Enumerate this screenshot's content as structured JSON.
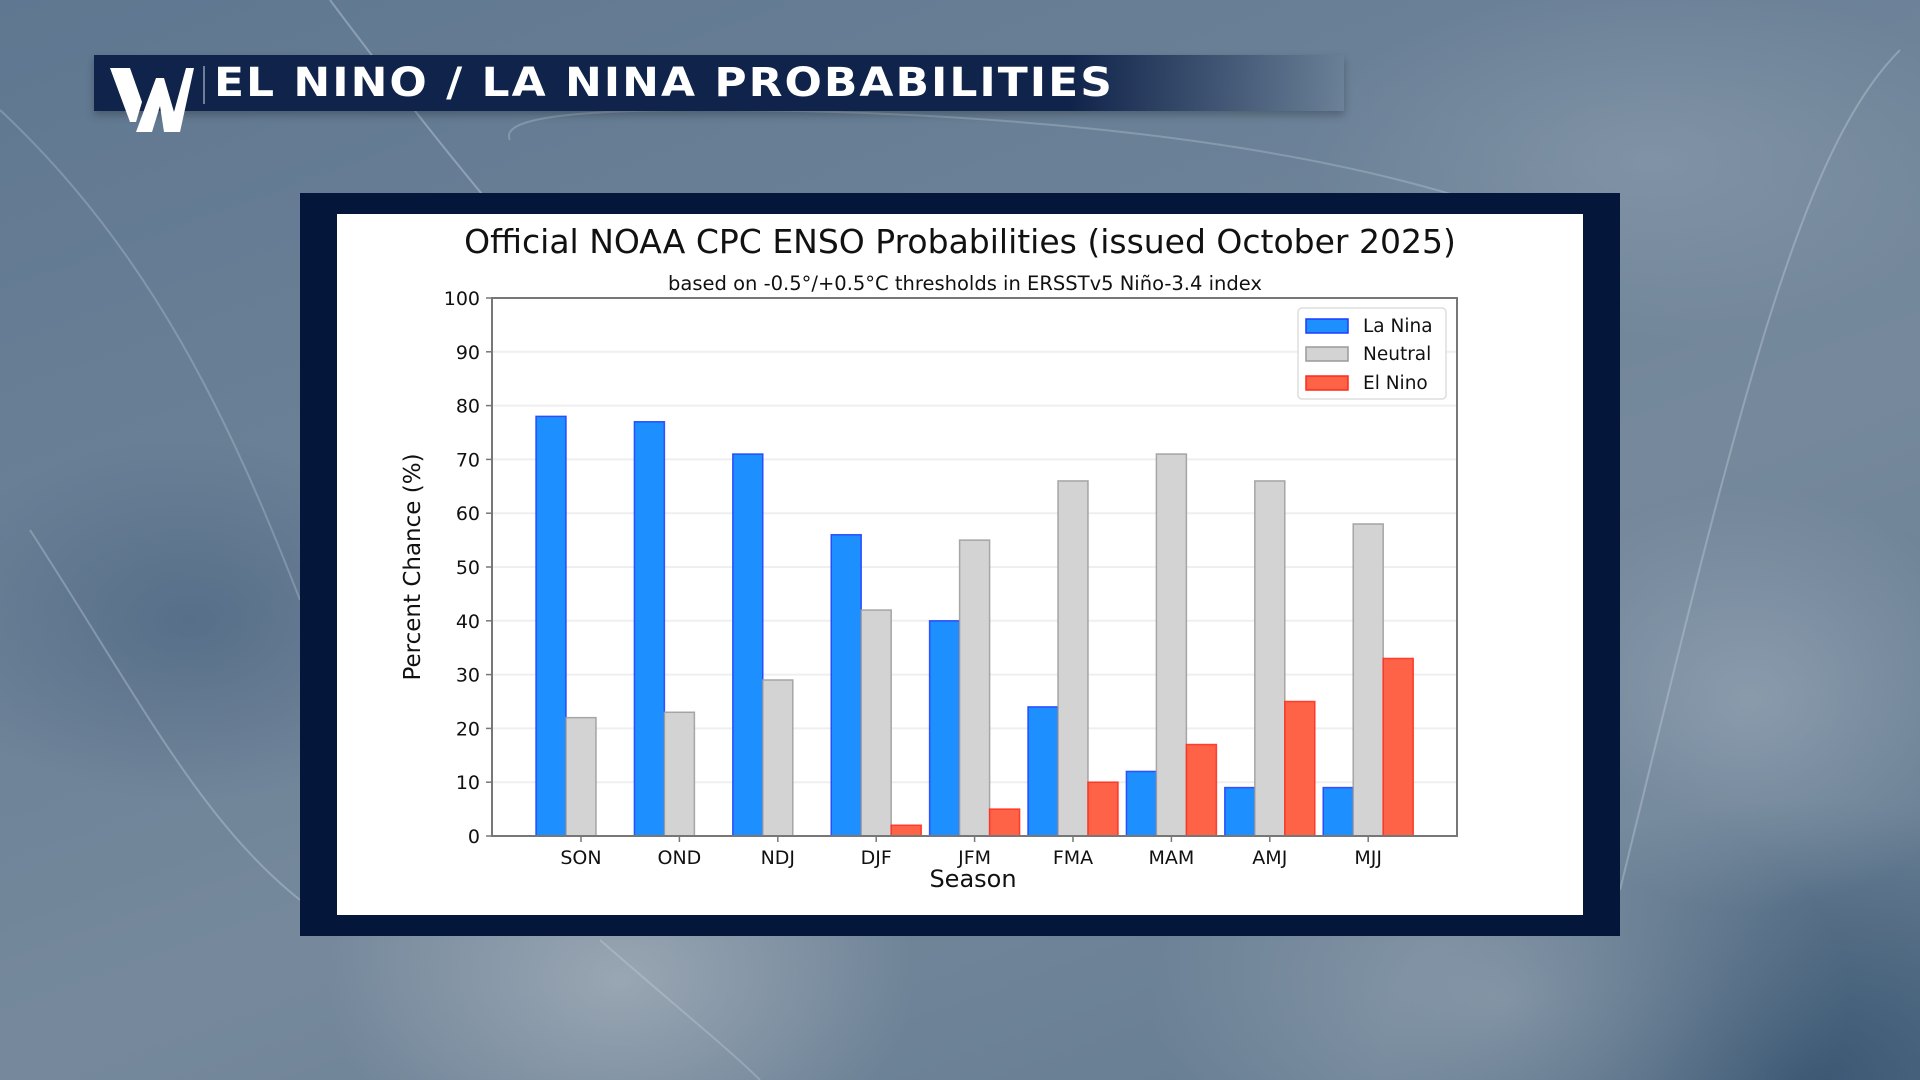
{
  "banner": {
    "title": "EL NINO / LA NINA PROBABILITIES",
    "logo_letter": "W"
  },
  "colors": {
    "la_nina": "#1e8fff",
    "la_nina_edge": "#1f3cff",
    "neutral": "#d3d3d3",
    "neutral_edge": "#9a9a9a",
    "el_nino": "#ff6347",
    "el_nino_edge": "#ff2a1a",
    "frame": "#04163a",
    "banner": "#10234a"
  },
  "chart_data": {
    "type": "bar",
    "title": "Official NOAA CPC ENSO Probabilities (issued October 2025)",
    "subtitle": "based on -0.5°/+0.5°C thresholds in ERSSTv5 Niño-3.4 index",
    "xlabel": "Season",
    "ylabel": "Percent Chance (%)",
    "ylim": [
      0,
      100
    ],
    "yticks": [
      "0",
      "10",
      "20",
      "30",
      "40",
      "50",
      "60",
      "70",
      "80",
      "90",
      "100"
    ],
    "grid": true,
    "legend_position": "top-right",
    "categories": [
      "SON",
      "OND",
      "NDJ",
      "DJF",
      "JFM",
      "FMA",
      "MAM",
      "AMJ",
      "MJJ"
    ],
    "series": [
      {
        "name": "La Nina",
        "values": [
          78,
          77,
          71,
          56,
          40,
          24,
          12,
          9,
          9
        ]
      },
      {
        "name": "Neutral",
        "values": [
          22,
          23,
          29,
          42,
          55,
          66,
          71,
          66,
          58
        ]
      },
      {
        "name": "El Nino",
        "values": [
          0,
          0,
          0,
          2,
          5,
          10,
          17,
          25,
          33
        ]
      }
    ]
  }
}
